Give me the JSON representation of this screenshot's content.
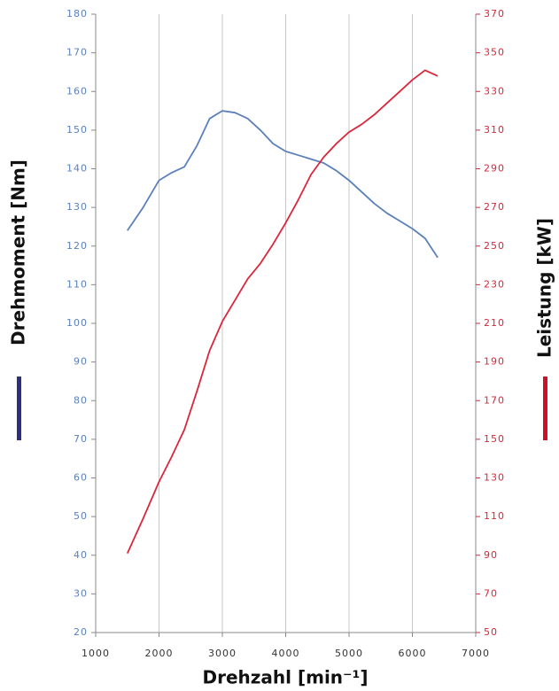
{
  "chart_data": {
    "type": "line",
    "xlabel": "Drehzahl [min⁻¹]",
    "x": [
      1500,
      1750,
      2000,
      2200,
      2400,
      2600,
      2800,
      3000,
      3200,
      3400,
      3600,
      3800,
      4000,
      4200,
      4400,
      4600,
      4800,
      5000,
      5200,
      5400,
      5600,
      5800,
      6000,
      6200,
      6400
    ],
    "xlim": [
      1000,
      7000
    ],
    "xticks": [
      1000,
      2000,
      3000,
      4000,
      5000,
      6000,
      7000
    ],
    "ylim": [
      20,
      180
    ],
    "yticks": [
      20,
      30,
      40,
      50,
      60,
      70,
      80,
      90,
      100,
      110,
      120,
      130,
      140,
      150,
      160,
      170,
      180
    ],
    "y2lim": [
      50,
      370
    ],
    "y2ticks": [
      50,
      70,
      90,
      110,
      130,
      150,
      170,
      190,
      210,
      230,
      250,
      270,
      290,
      310,
      330,
      350,
      370
    ],
    "grid": true,
    "series": [
      {
        "name": "Drehmoment [Nm]",
        "color": "#5b80b9",
        "legend_color": "#2e2f80",
        "values": [
          124,
          130,
          137,
          139,
          140.5,
          146,
          153,
          155,
          154.5,
          153,
          150,
          146.5,
          144.5,
          143.5,
          142.5,
          141.5,
          139.5,
          137,
          134,
          131,
          128.5,
          126.5,
          124.5,
          122,
          117
        ]
      },
      {
        "name": "Leistung [kW]",
        "color": "#d9263a",
        "legend_color": "#d0102a",
        "axis": "y2",
        "values": [
          91,
          109,
          128,
          141,
          155,
          175,
          196,
          211,
          222,
          233,
          241,
          251,
          262,
          274,
          287,
          296,
          303,
          309,
          313,
          318,
          324,
          330,
          336,
          341,
          338
        ]
      }
    ]
  }
}
